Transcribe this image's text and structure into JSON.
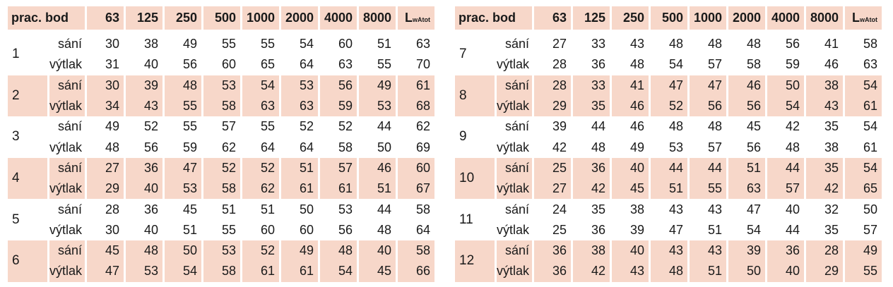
{
  "header": {
    "point": "prac. bod",
    "frequencies": [
      "63",
      "125",
      "250",
      "500",
      "1000",
      "2000",
      "4000",
      "8000"
    ],
    "total_main": "L",
    "total_sub": "wAtot"
  },
  "row_labels": {
    "suction": "sání",
    "discharge": "výtlak"
  },
  "left": [
    {
      "point": "1",
      "suction": [
        "30",
        "38",
        "49",
        "55",
        "55",
        "54",
        "60",
        "51",
        "63"
      ],
      "discharge": [
        "31",
        "40",
        "56",
        "60",
        "65",
        "64",
        "63",
        "55",
        "70"
      ]
    },
    {
      "point": "2",
      "suction": [
        "30",
        "39",
        "48",
        "53",
        "54",
        "53",
        "56",
        "49",
        "61"
      ],
      "discharge": [
        "34",
        "43",
        "55",
        "58",
        "63",
        "63",
        "59",
        "53",
        "68"
      ]
    },
    {
      "point": "3",
      "suction": [
        "49",
        "52",
        "55",
        "57",
        "55",
        "52",
        "52",
        "44",
        "62"
      ],
      "discharge": [
        "48",
        "56",
        "59",
        "62",
        "64",
        "64",
        "58",
        "50",
        "69"
      ]
    },
    {
      "point": "4",
      "suction": [
        "27",
        "36",
        "47",
        "52",
        "52",
        "51",
        "57",
        "46",
        "60"
      ],
      "discharge": [
        "29",
        "40",
        "53",
        "58",
        "62",
        "61",
        "61",
        "51",
        "67"
      ]
    },
    {
      "point": "5",
      "suction": [
        "28",
        "36",
        "45",
        "51",
        "51",
        "50",
        "53",
        "44",
        "58"
      ],
      "discharge": [
        "30",
        "40",
        "51",
        "55",
        "60",
        "60",
        "56",
        "48",
        "64"
      ]
    },
    {
      "point": "6",
      "suction": [
        "45",
        "48",
        "50",
        "53",
        "52",
        "49",
        "48",
        "40",
        "58"
      ],
      "discharge": [
        "47",
        "53",
        "54",
        "58",
        "61",
        "61",
        "54",
        "45",
        "66"
      ]
    }
  ],
  "right": [
    {
      "point": "7",
      "suction": [
        "27",
        "33",
        "43",
        "48",
        "48",
        "48",
        "56",
        "41",
        "58"
      ],
      "discharge": [
        "28",
        "36",
        "48",
        "54",
        "57",
        "58",
        "59",
        "46",
        "63"
      ]
    },
    {
      "point": "8",
      "suction": [
        "28",
        "33",
        "41",
        "47",
        "47",
        "46",
        "50",
        "38",
        "54"
      ],
      "discharge": [
        "29",
        "35",
        "46",
        "52",
        "56",
        "56",
        "54",
        "43",
        "61"
      ]
    },
    {
      "point": "9",
      "suction": [
        "39",
        "44",
        "46",
        "48",
        "48",
        "45",
        "42",
        "35",
        "54"
      ],
      "discharge": [
        "42",
        "48",
        "49",
        "53",
        "57",
        "56",
        "48",
        "38",
        "61"
      ]
    },
    {
      "point": "10",
      "suction": [
        "25",
        "36",
        "40",
        "44",
        "44",
        "51",
        "44",
        "35",
        "54"
      ],
      "discharge": [
        "27",
        "42",
        "45",
        "51",
        "55",
        "63",
        "57",
        "42",
        "65"
      ]
    },
    {
      "point": "11",
      "suction": [
        "24",
        "35",
        "38",
        "43",
        "43",
        "47",
        "40",
        "32",
        "50"
      ],
      "discharge": [
        "25",
        "36",
        "39",
        "47",
        "51",
        "54",
        "44",
        "35",
        "57"
      ]
    },
    {
      "point": "12",
      "suction": [
        "36",
        "38",
        "40",
        "43",
        "43",
        "39",
        "36",
        "28",
        "49"
      ],
      "discharge": [
        "36",
        "42",
        "43",
        "48",
        "51",
        "50",
        "40",
        "29",
        "55"
      ]
    }
  ]
}
